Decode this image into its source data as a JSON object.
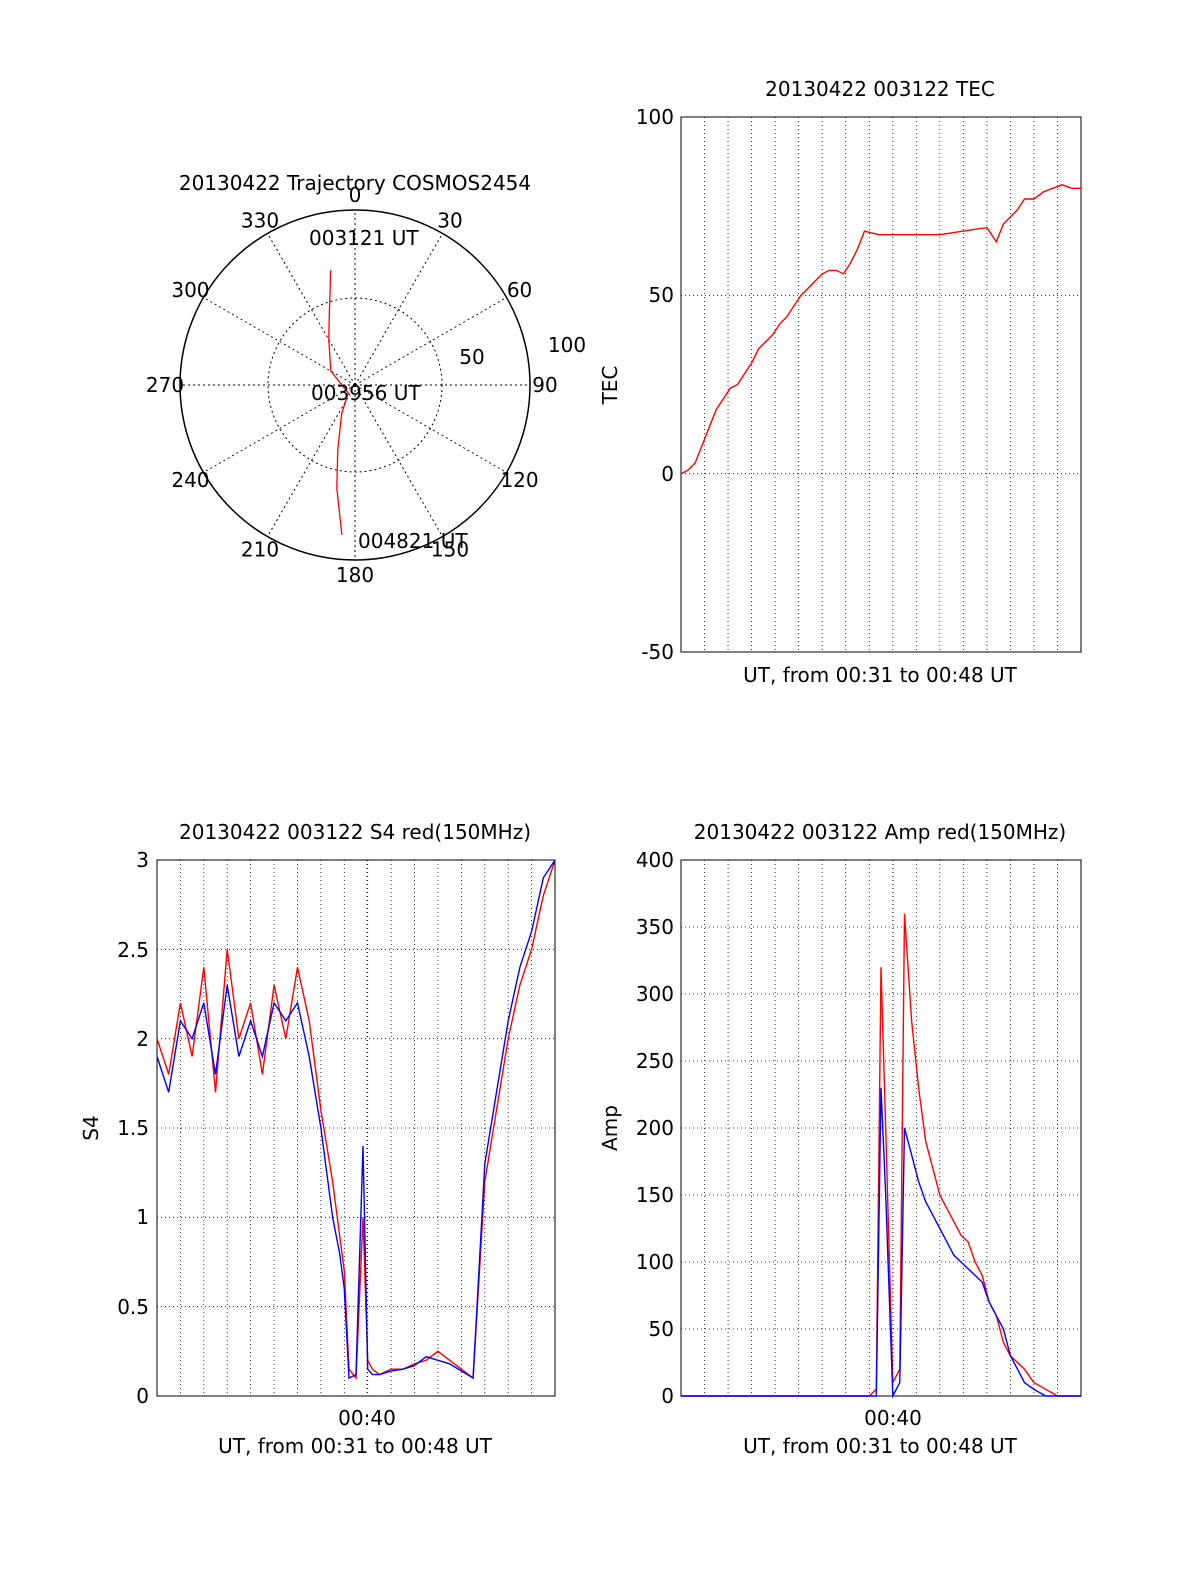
{
  "chart_data": [
    {
      "type": "polar-trajectory",
      "title": "20130422 Trajectory COSMOS2454",
      "azimuth_labels": [
        "0",
        "30",
        "60",
        "90",
        "120",
        "150",
        "180",
        "210",
        "240",
        "270",
        "300",
        "330"
      ],
      "radial_labels": [
        "50",
        "100"
      ],
      "rlim": [
        0,
        100
      ],
      "grid": true,
      "trajectory_color": "#ff0000",
      "trajectory": [
        {
          "az": 348,
          "r": 67
        },
        {
          "az": 345,
          "r": 55
        },
        {
          "az": 340,
          "r": 43
        },
        {
          "az": 330,
          "r": 30
        },
        {
          "az": 300,
          "r": 16
        },
        {
          "az": 220,
          "r": 6
        },
        {
          "az": 205,
          "r": 18
        },
        {
          "az": 195,
          "r": 38
        },
        {
          "az": 190,
          "r": 60
        },
        {
          "az": 185,
          "r": 86
        }
      ],
      "annotations": [
        "003121 UT",
        "003956 UT",
        "004821 UT"
      ]
    },
    {
      "type": "line",
      "title": "20130422 003122 TEC",
      "ylabel": "TEC",
      "xlabel": "UT, from 00:31 to 00:48 UT",
      "xlim": [
        0,
        17
      ],
      "ylim": [
        -50,
        100
      ],
      "yticks": [
        "100",
        "50",
        "0",
        "-50"
      ],
      "grid": true,
      "series": [
        {
          "color": "#ff0000",
          "x": [
            0.0,
            0.3,
            0.6,
            0.9,
            1.2,
            1.5,
            1.8,
            2.1,
            2.4,
            2.7,
            3.0,
            3.3,
            3.6,
            3.9,
            4.2,
            4.5,
            4.8,
            5.1,
            5.4,
            5.7,
            6.0,
            6.3,
            6.6,
            6.9,
            7.2,
            7.5,
            7.8,
            8.4,
            9.0,
            10.0,
            11.0,
            12.0,
            13.0,
            13.4,
            13.7,
            14.0,
            14.3,
            14.6,
            15.0,
            15.4,
            15.8,
            16.2,
            16.6,
            17.0
          ],
          "values": [
            0,
            1,
            3,
            8,
            13,
            18,
            21,
            24,
            25,
            28,
            31,
            35,
            37,
            39,
            42,
            44,
            47,
            50,
            52,
            54,
            56,
            57,
            57,
            56,
            59,
            63,
            68,
            67,
            67,
            67,
            67,
            68,
            69,
            65,
            70,
            72,
            74,
            77,
            77,
            79,
            80,
            81,
            80,
            80
          ]
        }
      ]
    },
    {
      "type": "line",
      "title": "20130422 003122 S4 red(150MHz)",
      "ylabel": "S4",
      "xlabel": "UT, from 00:31 to 00:48 UT",
      "xtick_label": "00:40",
      "xlim": [
        0,
        17
      ],
      "ylim": [
        0,
        3
      ],
      "yticks": [
        "3",
        "2.5",
        "2",
        "1.5",
        "1",
        "0.5",
        "0"
      ],
      "grid": true,
      "series": [
        {
          "color": "#ff0000",
          "x": [
            0.0,
            0.5,
            1.0,
            1.5,
            2.0,
            2.5,
            3.0,
            3.5,
            4.0,
            4.5,
            5.0,
            5.5,
            6.0,
            6.5,
            7.0,
            7.5,
            7.8,
            8.0,
            8.2,
            8.5,
            8.8,
            9.0,
            9.2,
            9.5,
            10.0,
            10.5,
            11.0,
            11.5,
            12.0,
            12.5,
            13.0,
            13.5,
            14.0,
            14.5,
            15.0,
            15.5,
            16.0,
            16.5,
            17.0
          ],
          "values": [
            2.0,
            1.8,
            2.2,
            1.9,
            2.4,
            1.7,
            2.5,
            2.0,
            2.2,
            1.8,
            2.3,
            2.0,
            2.4,
            2.1,
            1.6,
            1.2,
            0.9,
            0.7,
            0.15,
            0.1,
            1.0,
            0.2,
            0.15,
            0.12,
            0.15,
            0.15,
            0.18,
            0.2,
            0.25,
            0.2,
            0.15,
            0.1,
            1.2,
            1.6,
            2.0,
            2.3,
            2.5,
            2.8,
            3.0
          ]
        },
        {
          "color": "#0000ff",
          "x": [
            0.0,
            0.5,
            1.0,
            1.5,
            2.0,
            2.5,
            3.0,
            3.5,
            4.0,
            4.5,
            5.0,
            5.5,
            6.0,
            6.5,
            7.0,
            7.5,
            7.8,
            8.0,
            8.2,
            8.5,
            8.8,
            9.0,
            9.2,
            9.5,
            10.0,
            10.5,
            11.0,
            11.5,
            12.0,
            12.5,
            13.0,
            13.5,
            14.0,
            14.5,
            15.0,
            15.5,
            16.0,
            16.5,
            17.0
          ],
          "values": [
            1.9,
            1.7,
            2.1,
            2.0,
            2.2,
            1.8,
            2.3,
            1.9,
            2.1,
            1.9,
            2.2,
            2.1,
            2.2,
            1.9,
            1.5,
            1.0,
            0.8,
            0.6,
            0.1,
            0.12,
            1.4,
            0.15,
            0.12,
            0.12,
            0.14,
            0.15,
            0.17,
            0.22,
            0.2,
            0.18,
            0.14,
            0.1,
            1.3,
            1.7,
            2.1,
            2.4,
            2.6,
            2.9,
            3.0
          ]
        }
      ]
    },
    {
      "type": "line",
      "title": "20130422 003122 Amp red(150MHz)",
      "ylabel": "Amp",
      "xlabel": "UT, from 00:31 to 00:48 UT",
      "xtick_label": "00:40",
      "xlim": [
        0,
        17
      ],
      "ylim": [
        0,
        400
      ],
      "yticks": [
        "400",
        "350",
        "300",
        "250",
        "200",
        "150",
        "100",
        "50",
        "0"
      ],
      "grid": true,
      "series": [
        {
          "color": "#ff0000",
          "x": [
            0,
            8.0,
            8.3,
            8.5,
            8.7,
            9.0,
            9.3,
            9.5,
            9.8,
            10.1,
            10.4,
            10.7,
            11.0,
            11.3,
            11.6,
            11.9,
            12.2,
            12.5,
            12.8,
            13.1,
            13.4,
            13.7,
            14.0,
            14.3,
            14.6,
            15.0,
            15.5,
            16.0,
            17.0
          ],
          "values": [
            0,
            0,
            5,
            320,
            200,
            10,
            20,
            360,
            280,
            230,
            190,
            170,
            150,
            140,
            130,
            120,
            115,
            100,
            90,
            70,
            60,
            40,
            30,
            25,
            20,
            10,
            5,
            0,
            0
          ]
        },
        {
          "color": "#0000ff",
          "x": [
            0,
            8.0,
            8.3,
            8.5,
            8.7,
            9.0,
            9.3,
            9.5,
            9.8,
            10.1,
            10.4,
            10.7,
            11.0,
            11.3,
            11.6,
            11.9,
            12.2,
            12.5,
            12.8,
            13.1,
            13.4,
            13.7,
            14.0,
            14.3,
            14.6,
            15.0,
            15.5,
            16.0,
            17.0
          ],
          "values": [
            0,
            0,
            0,
            230,
            150,
            0,
            10,
            200,
            180,
            160,
            145,
            135,
            125,
            115,
            105,
            100,
            95,
            90,
            85,
            70,
            60,
            50,
            30,
            20,
            10,
            5,
            0,
            0,
            0
          ]
        }
      ]
    }
  ]
}
